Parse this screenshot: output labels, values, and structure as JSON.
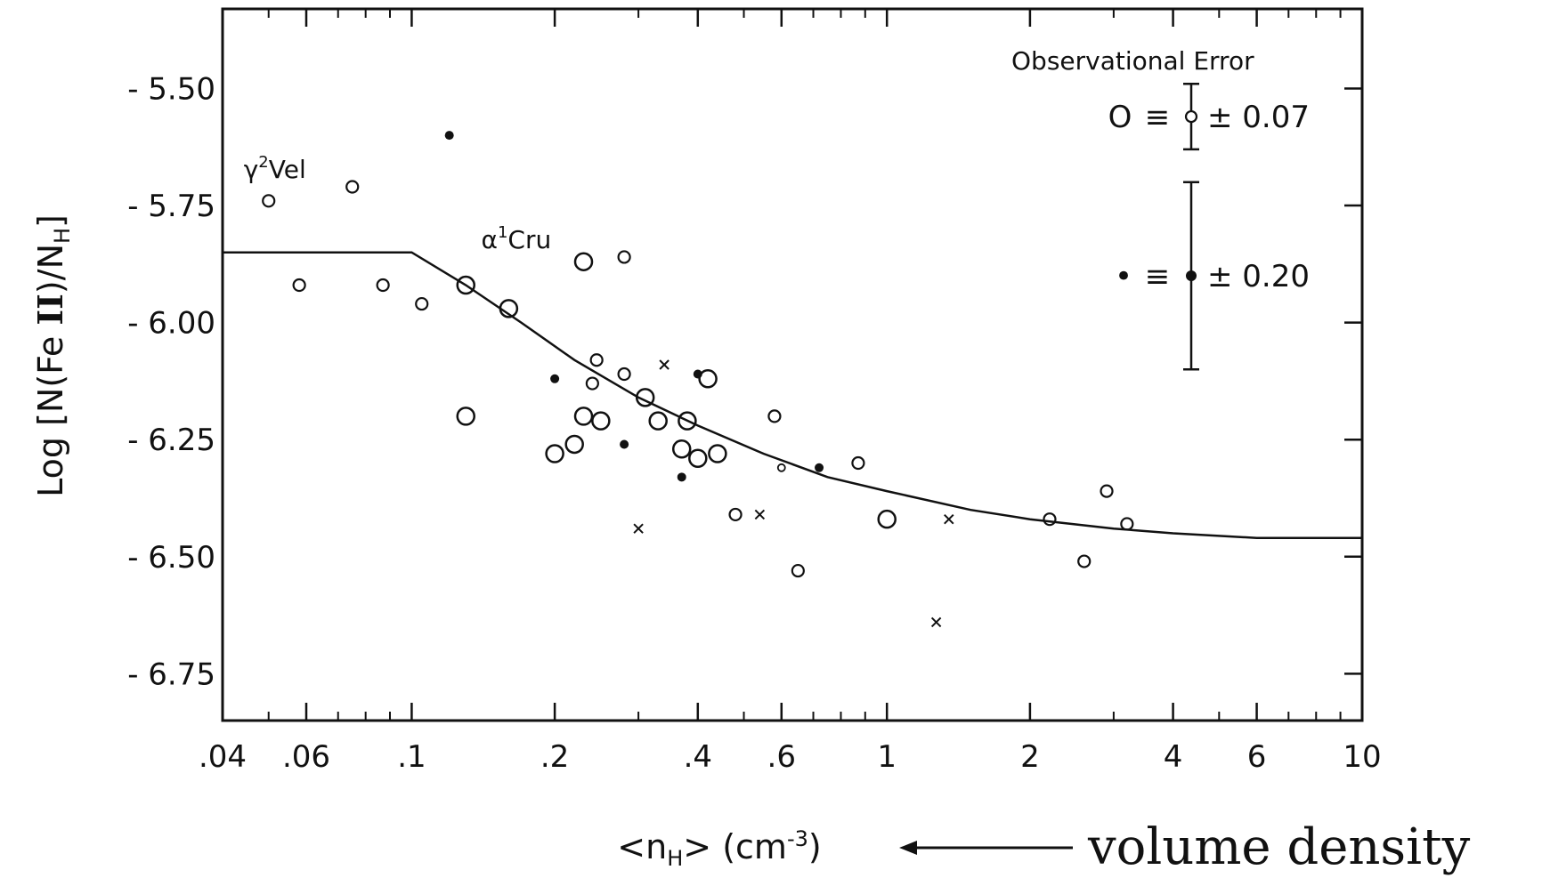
{
  "chart_data": {
    "type": "scatter",
    "title": "",
    "xlabel": "<n",
    "xlabel_sub": "H",
    "xlabel_unit": "> (cm",
    "xlabel_sup": "-3",
    "xlabel_close": ")",
    "ylabel_pre": "Log [N(Fe ",
    "ylabel_roman": "II",
    "ylabel_mid": ")/N",
    "ylabel_sub": "H",
    "ylabel_close": "]",
    "x_scale": "log",
    "xlim": [
      0.04,
      10
    ],
    "ylim": [
      -6.85,
      -5.33
    ],
    "grid": false,
    "x_ticks": [
      {
        "v": 0.04,
        "label": ".04"
      },
      {
        "v": 0.06,
        "label": ".06"
      },
      {
        "v": 0.1,
        "label": ".1"
      },
      {
        "v": 0.2,
        "label": ".2"
      },
      {
        "v": 0.4,
        "label": ".4"
      },
      {
        "v": 0.6,
        "label": ".6"
      },
      {
        "v": 1,
        "label": "1"
      },
      {
        "v": 2,
        "label": "2"
      },
      {
        "v": 4,
        "label": "4"
      },
      {
        "v": 6,
        "label": "6"
      },
      {
        "v": 10,
        "label": "10"
      }
    ],
    "x_minor": [
      0.05,
      0.07,
      0.08,
      0.09,
      0.3,
      0.5,
      0.7,
      0.8,
      0.9,
      3,
      5,
      7,
      8,
      9
    ],
    "y_ticks": [
      {
        "v": -5.5,
        "label": "- 5.50"
      },
      {
        "v": -5.75,
        "label": "- 5.75"
      },
      {
        "v": -6.0,
        "label": "- 6.00"
      },
      {
        "v": -6.25,
        "label": "- 6.25"
      },
      {
        "v": -6.5,
        "label": "- 6.50"
      },
      {
        "v": -6.75,
        "label": "- 6.75"
      }
    ],
    "series": [
      {
        "marker": "open-circle-large",
        "points": [
          [
            0.23,
            -5.87
          ],
          [
            0.13,
            -5.92
          ],
          [
            0.16,
            -5.97
          ],
          [
            0.13,
            -6.2
          ],
          [
            0.2,
            -6.28
          ],
          [
            0.22,
            -6.26
          ],
          [
            0.23,
            -6.2
          ],
          [
            0.25,
            -6.21
          ],
          [
            0.31,
            -6.16
          ],
          [
            0.33,
            -6.21
          ],
          [
            0.38,
            -6.21
          ],
          [
            0.42,
            -6.12
          ],
          [
            0.37,
            -6.27
          ],
          [
            0.44,
            -6.28
          ],
          [
            0.4,
            -6.29
          ],
          [
            1.0,
            -6.42
          ]
        ]
      },
      {
        "marker": "open-circle-small",
        "points": [
          [
            0.05,
            -5.74
          ],
          [
            0.058,
            -5.92
          ],
          [
            0.075,
            -5.71
          ],
          [
            0.087,
            -5.92
          ],
          [
            0.105,
            -5.96
          ],
          [
            0.28,
            -5.86
          ],
          [
            0.245,
            -6.08
          ],
          [
            0.28,
            -6.11
          ],
          [
            0.24,
            -6.13
          ],
          [
            0.48,
            -6.41
          ],
          [
            0.58,
            -6.2
          ],
          [
            0.87,
            -6.3
          ],
          [
            0.65,
            -6.53
          ],
          [
            2.2,
            -6.42
          ],
          [
            2.6,
            -6.51
          ],
          [
            2.9,
            -6.36
          ],
          [
            3.2,
            -6.43
          ]
        ]
      },
      {
        "marker": "tiny-circle",
        "points": [
          [
            0.6,
            -6.31
          ]
        ]
      },
      {
        "marker": "filled-dot",
        "points": [
          [
            0.12,
            -5.6
          ],
          [
            0.2,
            -6.12
          ],
          [
            0.28,
            -6.26
          ],
          [
            0.4,
            -6.11
          ],
          [
            0.37,
            -6.33
          ],
          [
            0.72,
            -6.31
          ]
        ]
      },
      {
        "marker": "cross",
        "points": [
          [
            0.34,
            -6.09
          ],
          [
            0.3,
            -6.44
          ],
          [
            0.54,
            -6.41
          ],
          [
            1.35,
            -6.42
          ],
          [
            1.27,
            -6.64
          ]
        ]
      }
    ],
    "model_curve": [
      [
        0.04,
        -5.85
      ],
      [
        0.1,
        -5.85
      ],
      [
        0.13,
        -5.92
      ],
      [
        0.17,
        -6.0
      ],
      [
        0.22,
        -6.08
      ],
      [
        0.3,
        -6.16
      ],
      [
        0.4,
        -6.22
      ],
      [
        0.55,
        -6.28
      ],
      [
        0.75,
        -6.33
      ],
      [
        1.0,
        -6.36
      ],
      [
        1.5,
        -6.4
      ],
      [
        2.0,
        -6.42
      ],
      [
        3.0,
        -6.44
      ],
      [
        4.0,
        -6.45
      ],
      [
        6.0,
        -6.46
      ],
      [
        10,
        -6.46
      ]
    ],
    "annotations": [
      {
        "prefix": "γ",
        "sup": "2",
        "name": "Vel",
        "x": 0.05,
        "y": -5.74
      },
      {
        "prefix": "α",
        "sup": "1",
        "name": "Cru",
        "x": 0.23,
        "y": -5.87
      }
    ],
    "legend": {
      "title": "Observational Error",
      "placement": "top-right",
      "rows": [
        {
          "marker": "open-circle",
          "sym": "O",
          "eq": "≡",
          "err_label": "± 0.07",
          "error": 0.07
        },
        {
          "marker": "filled-dot",
          "sym": "•",
          "eq": "≡",
          "err_label": "± 0.20",
          "error": 0.2
        }
      ]
    }
  },
  "annotation": {
    "text": "volume density",
    "color": "#e0141e"
  }
}
